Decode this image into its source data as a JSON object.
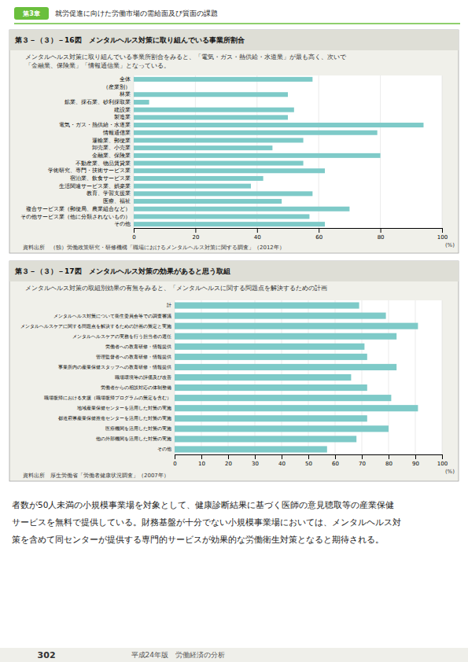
{
  "page_title": "就労促進に向けた労働市場の需給面及び質面の課題",
  "chapter_label": "第3章",
  "chart_data": [
    {
      "type": "bar",
      "orientation": "horizontal",
      "title": "第３－（３）－16図　メンタルヘルス対策に取り組んでいる事業所割合",
      "subtitle": "メンタルヘルス対策に取り組んでいる事業所割合をみると、「電気・ガス・熱供給・水道業」が最も高く、次いで\n「金融業、保険業」「情報通信業」となっている。",
      "source": "資料出所　（独）労働政策研究・研修機構「職場におけるメンタルヘルス対策に関する調査」（2012年）",
      "xlabel": "(%)",
      "categories": [
        "全体",
        "（産業別）",
        "林業",
        "鉱業、採石業、砂利採取業",
        "建設業",
        "製造業",
        "電気・ガス・熱供給・水道業",
        "情報通信業",
        "運輸業、郵便業",
        "卸売業、小売業",
        "金融業、保険業",
        "不動産業、物品賃貸業",
        "学術研究、専門・技術サービス業",
        "宿泊業、飲食サービス業",
        "生活関連サービス業、娯楽業",
        "教育、学習支援業",
        "医療、福祉",
        "複合サービス業（郵便局、農業組合など）",
        "その他サービス業（他に分類されないもの）",
        "その他"
      ],
      "values": [
        58,
        0,
        50,
        5,
        52,
        50,
        94,
        79,
        55,
        45,
        80,
        55,
        62,
        42,
        38,
        58,
        48,
        70,
        57,
        62
      ],
      "color": "#7ecac8",
      "xlim": [
        0,
        100
      ],
      "xticks": [
        0,
        20,
        40,
        60,
        80,
        100
      ],
      "grid": true
    },
    {
      "type": "bar",
      "orientation": "horizontal",
      "title": "第３－（３）－17図　メンタルヘルス対策の効果があると思う取組",
      "subtitle": "メンタルヘルス対策の取組別効果の有無をみると、「メンタルヘルスに関する問題点を解決するための計画",
      "source": "資料出所　厚生労働省「労働者健康状況調査」（2007年）",
      "xlabel": "(%)",
      "categories": [
        "計",
        "メンタルヘルス対策について衛生委員会等での調査審議",
        "メンタルヘルスケアに関する問題点を解決するための計画の策定と実施",
        "メンタルヘルスケアの実務を行う担当者の選任",
        "労働者への教育研修・情報提供",
        "管理監督者への教育研修・情報提供",
        "事業所内の産業保健スタッフへの教育研修・情報提供",
        "職場環境等の評価及び改善",
        "労働者からの相談対応の体制整備",
        "職場復帰における支援（職場復帰プログラムの策定を含む）",
        "地域産業保健センターを活用した対策の実施",
        "都道府県産業保健推進センターを活用した対策の実施",
        "医療機関を活用した対策の実施",
        "他の外部機関を活用した対策の実施",
        "その他"
      ],
      "values": [
        69,
        79,
        91,
        83,
        71,
        72,
        83,
        66,
        72,
        81,
        91,
        72,
        80,
        68,
        57
      ],
      "color": "#7ecac8",
      "xlim": [
        0,
        100
      ],
      "xticks": [
        0,
        10,
        20,
        30,
        40,
        50,
        60,
        70,
        80,
        90,
        100
      ],
      "grid": true
    }
  ],
  "footer_lines": [
    "者数が50人未満の小規模事業場を対象として、健康診断結果に基づく医師の意見聴取等の産業保健",
    "サービスを無料で提供している。財務基盤が十分でない小規模事業場においては、メンタルヘルス対",
    "策を含めて同センターが提供する専門的サービスが効果的な労働衛生対策となると期待される。"
  ],
  "page_number": "302",
  "page_footer_text": "平成24年版　労働経済の分析"
}
